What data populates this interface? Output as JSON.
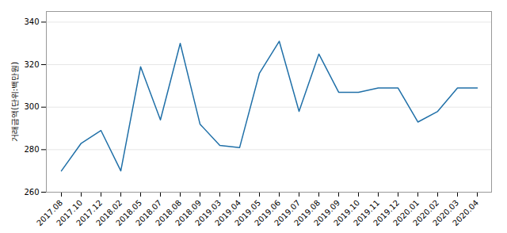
{
  "chart_data": {
    "type": "line",
    "ylabel": "거래금액(단위:백만원)",
    "categories": [
      "2017.08",
      "2017.10",
      "2017.12",
      "2018.02",
      "2018.05",
      "2018.07",
      "2018.08",
      "2018.09",
      "2019.03",
      "2019.04",
      "2019.05",
      "2019.06",
      "2019.07",
      "2019.08",
      "2019.09",
      "2019.10",
      "2019.11",
      "2019.12",
      "2020.01",
      "2020.02",
      "2020.03",
      "2020.04"
    ],
    "values": [
      270,
      283,
      289,
      270,
      319,
      294,
      330,
      292,
      282,
      281,
      316,
      331,
      298,
      325,
      307,
      307,
      309,
      309,
      293,
      298,
      309,
      309
    ],
    "color": "#2070a8",
    "ylim": [
      260,
      345
    ],
    "yticks": [
      260,
      280,
      300,
      320,
      340
    ],
    "grid": true
  }
}
